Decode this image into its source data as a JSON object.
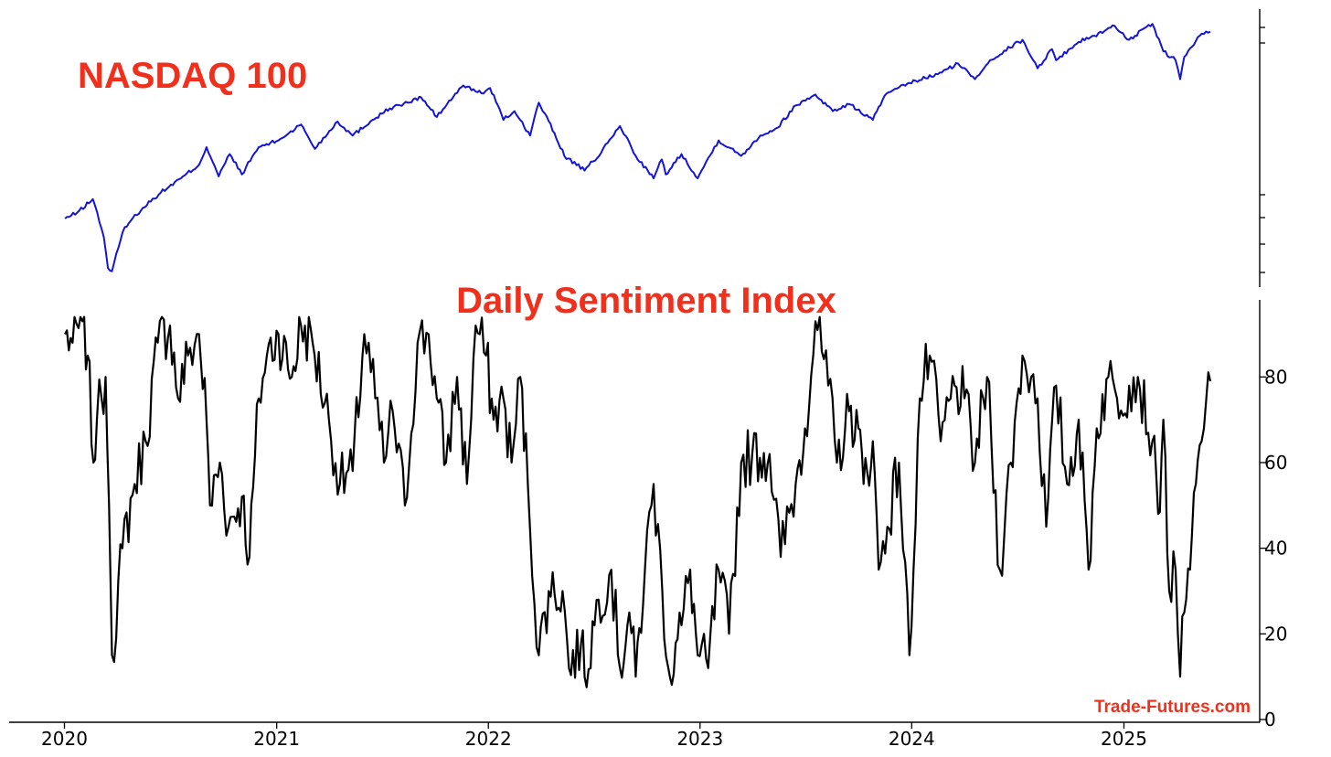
{
  "chart_data": [
    {
      "type": "line",
      "title": "NASDAQ 100",
      "y_scale": "log",
      "y_tick_labels_visible": false,
      "colors": {
        "title": "#f0301c",
        "line": "#1414d8"
      },
      "series": [
        {
          "x": [
            "2020-01-02",
            "2020-01-23",
            "2020-02-19",
            "2020-03-09",
            "2020-03-16",
            "2020-03-23",
            "2020-04-14",
            "2020-05-15",
            "2020-06-15",
            "2020-07-20",
            "2020-08-20",
            "2020-09-02",
            "2020-09-23",
            "2020-10-12",
            "2020-11-02",
            "2020-12-01",
            "2021-01-04",
            "2021-02-12",
            "2021-03-08",
            "2021-04-16",
            "2021-05-12",
            "2021-06-15",
            "2021-07-15",
            "2021-08-15",
            "2021-09-07",
            "2021-10-04",
            "2021-11-19",
            "2021-12-20",
            "2022-01-04",
            "2022-01-27",
            "2022-02-15",
            "2022-03-14",
            "2022-03-29",
            "2022-05-12",
            "2022-06-16",
            "2022-07-15",
            "2022-08-16",
            "2022-09-12",
            "2022-10-13",
            "2022-10-27",
            "2022-11-03",
            "2022-11-30",
            "2022-12-28",
            "2023-02-02",
            "2023-03-13",
            "2023-04-15",
            "2023-05-15",
            "2023-06-15",
            "2023-07-19",
            "2023-08-18",
            "2023-09-15",
            "2023-10-26",
            "2023-11-15",
            "2023-12-28",
            "2024-02-15",
            "2024-03-21",
            "2024-04-19",
            "2024-05-15",
            "2024-07-10",
            "2024-07-25",
            "2024-08-05",
            "2024-08-30",
            "2024-09-06",
            "2024-10-15",
            "2024-11-11",
            "2024-12-16",
            "2025-01-10",
            "2025-02-19",
            "2025-03-10",
            "2025-03-31",
            "2025-04-08",
            "2025-04-15",
            "2025-05-15",
            "2025-05-30"
          ],
          "y": [
            8850,
            9100,
            9700,
            8100,
            7000,
            6900,
            8500,
            9300,
            10000,
            10700,
            11400,
            12400,
            10800,
            12000,
            10900,
            12400,
            12800,
            13800,
            12300,
            14000,
            13100,
            14100,
            14900,
            15300,
            15700,
            14300,
            16600,
            16000,
            16400,
            14100,
            14700,
            13100,
            15300,
            11900,
            11100,
            12100,
            13700,
            11900,
            10700,
            11700,
            10900,
            12000,
            10700,
            12800,
            11900,
            13100,
            13600,
            15100,
            15900,
            14700,
            15200,
            14100,
            15800,
            16800,
            17500,
            18400,
            17100,
            18700,
            20600,
            19000,
            18000,
            19700,
            18700,
            20400,
            21000,
            22000,
            20600,
            22200,
            19500,
            18700,
            17100,
            19000,
            21200,
            21400
          ]
        }
      ]
    },
    {
      "type": "line",
      "title": "Daily Sentiment Index",
      "ylim": [
        0,
        98
      ],
      "yticks": [
        "0",
        "20",
        "40",
        "60",
        "80"
      ],
      "xticks": [
        "2020",
        "2021",
        "2022",
        "2023",
        "2024",
        "2025"
      ],
      "colors": {
        "title": "#f0301c",
        "line": "#000000"
      },
      "series": [
        {
          "x": [
            "2020-01-02",
            "2020-01-15",
            "2020-02-01",
            "2020-02-10",
            "2020-02-20",
            "2020-02-26",
            "2020-03-05",
            "2020-03-12",
            "2020-03-18",
            "2020-03-23",
            "2020-04-10",
            "2020-05-01",
            "2020-05-20",
            "2020-06-10",
            "2020-07-01",
            "2020-07-15",
            "2020-08-01",
            "2020-08-20",
            "2020-09-02",
            "2020-09-08",
            "2020-09-25",
            "2020-10-10",
            "2020-11-02",
            "2020-11-15",
            "2020-12-01",
            "2020-12-15",
            "2021-01-04",
            "2021-01-27",
            "2021-02-12",
            "2021-03-04",
            "2021-04-01",
            "2021-04-20",
            "2021-05-12",
            "2021-06-01",
            "2021-06-20",
            "2021-07-05",
            "2021-07-20",
            "2021-08-10",
            "2021-09-01",
            "2021-09-20",
            "2021-10-04",
            "2021-10-20",
            "2021-11-08",
            "2021-11-25",
            "2021-12-10",
            "2021-12-28",
            "2022-01-10",
            "2022-01-27",
            "2022-02-10",
            "2022-02-25",
            "2022-03-10",
            "2022-03-29",
            "2022-04-15",
            "2022-05-09",
            "2022-05-20",
            "2022-06-10",
            "2022-06-16",
            "2022-07-10",
            "2022-08-01",
            "2022-08-16",
            "2022-09-01",
            "2022-09-12",
            "2022-09-28",
            "2022-10-13",
            "2022-10-28",
            "2022-11-10",
            "2022-11-30",
            "2022-12-15",
            "2022-12-28",
            "2023-01-15",
            "2023-02-02",
            "2023-02-20",
            "2023-03-13",
            "2023-04-01",
            "2023-05-01",
            "2023-05-20",
            "2023-06-15",
            "2023-07-01",
            "2023-07-19",
            "2023-08-10",
            "2023-08-25",
            "2023-09-15",
            "2023-10-01",
            "2023-10-10",
            "2023-10-26",
            "2023-11-05",
            "2023-11-20",
            "2023-12-10",
            "2023-12-28",
            "2024-01-15",
            "2024-02-01",
            "2024-02-20",
            "2024-03-15",
            "2024-04-01",
            "2024-04-19",
            "2024-05-10",
            "2024-06-01",
            "2024-06-20",
            "2024-07-10",
            "2024-07-25",
            "2024-08-05",
            "2024-08-20",
            "2024-09-06",
            "2024-09-25",
            "2024-10-15",
            "2024-11-01",
            "2024-11-15",
            "2024-12-05",
            "2024-12-20",
            "2025-01-10",
            "2025-01-25",
            "2025-02-19",
            "2025-03-01",
            "2025-03-10",
            "2025-03-20",
            "2025-03-31",
            "2025-04-04",
            "2025-04-08",
            "2025-04-15",
            "2025-04-25",
            "2025-05-05",
            "2025-05-15",
            "2025-05-23",
            "2025-05-30"
          ],
          "y": [
            90,
            88,
            93,
            85,
            60,
            70,
            75,
            80,
            50,
            15,
            40,
            55,
            65,
            88,
            92,
            75,
            85,
            90,
            70,
            50,
            60,
            45,
            52,
            38,
            75,
            85,
            90,
            80,
            92,
            88,
            70,
            55,
            58,
            90,
            75,
            60,
            72,
            50,
            88,
            90,
            75,
            60,
            80,
            55,
            92,
            85,
            70,
            75,
            60,
            80,
            55,
            15,
            30,
            30,
            12,
            18,
            10,
            28,
            35,
            12,
            25,
            10,
            35,
            55,
            30,
            10,
            22,
            35,
            15,
            12,
            35,
            20,
            60,
            62,
            62,
            38,
            55,
            68,
            93,
            78,
            60,
            72,
            68,
            55,
            65,
            35,
            45,
            60,
            15,
            75,
            85,
            65,
            78,
            75,
            60,
            80,
            35,
            60,
            85,
            80,
            75,
            45,
            78,
            55,
            70,
            35,
            68,
            80,
            75,
            78,
            80,
            65,
            48,
            70,
            30,
            35,
            20,
            10,
            25,
            35,
            55,
            65,
            75,
            79
          ]
        }
      ]
    }
  ],
  "watermark": "Trade-Futures.com"
}
